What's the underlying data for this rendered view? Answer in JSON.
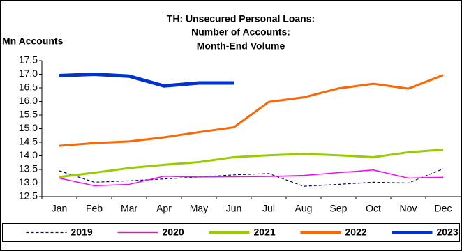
{
  "chart_data": {
    "type": "line",
    "title": [
      "TH: Unsecured Personal Loans:",
      "Number of Accounts:",
      "Month-End Volume"
    ],
    "y_label": "Mn Accounts",
    "categories": [
      "Jan",
      "Feb",
      "Mar",
      "Apr",
      "May",
      "Jun",
      "Jul",
      "Aug",
      "Sep",
      "Oct",
      "Nov",
      "Dec"
    ],
    "series": [
      {
        "name": "2019",
        "color": "#000080",
        "dashed": true,
        "linewidth": 1.2,
        "values": [
          13.45,
          13.03,
          13.08,
          13.15,
          13.22,
          13.3,
          13.35,
          12.88,
          12.95,
          13.03,
          13.0,
          13.52
        ]
      },
      {
        "name": "2020",
        "color": "#ff00ff",
        "linewidth": 1.5,
        "values": [
          13.18,
          12.9,
          12.95,
          13.25,
          13.22,
          13.23,
          13.24,
          13.28,
          13.38,
          13.48,
          13.18,
          13.21
        ]
      },
      {
        "name": "2021",
        "color": "#99cc00",
        "linewidth": 3,
        "values": [
          13.22,
          13.38,
          13.55,
          13.67,
          13.77,
          13.95,
          14.02,
          14.07,
          14.02,
          13.95,
          14.13,
          14.23
        ]
      },
      {
        "name": "2022",
        "color": "#ff6600",
        "linewidth": 3,
        "values": [
          14.37,
          14.47,
          14.53,
          14.68,
          14.87,
          15.05,
          15.98,
          16.15,
          16.48,
          16.65,
          16.47,
          16.97
        ]
      },
      {
        "name": "2023",
        "color": "#0033cc",
        "linewidth": 5,
        "values": [
          16.95,
          17.0,
          16.93,
          16.57,
          16.68,
          16.68,
          null,
          null,
          null,
          null,
          null,
          null
        ]
      }
    ],
    "ylim": [
      12.5,
      17.5
    ],
    "yticks": [
      12.5,
      {
        "value": 13,
        "label": "13.0"
      },
      13.5,
      {
        "value": 14,
        "label": "14.0"
      },
      14.5,
      {
        "value": 15,
        "label": "15.0"
      },
      15.5,
      {
        "value": 16,
        "label": "16.0"
      },
      16.5,
      {
        "value": 17,
        "label": "17.0"
      },
      17.5
    ],
    "grid": false,
    "legend": "bottom"
  }
}
